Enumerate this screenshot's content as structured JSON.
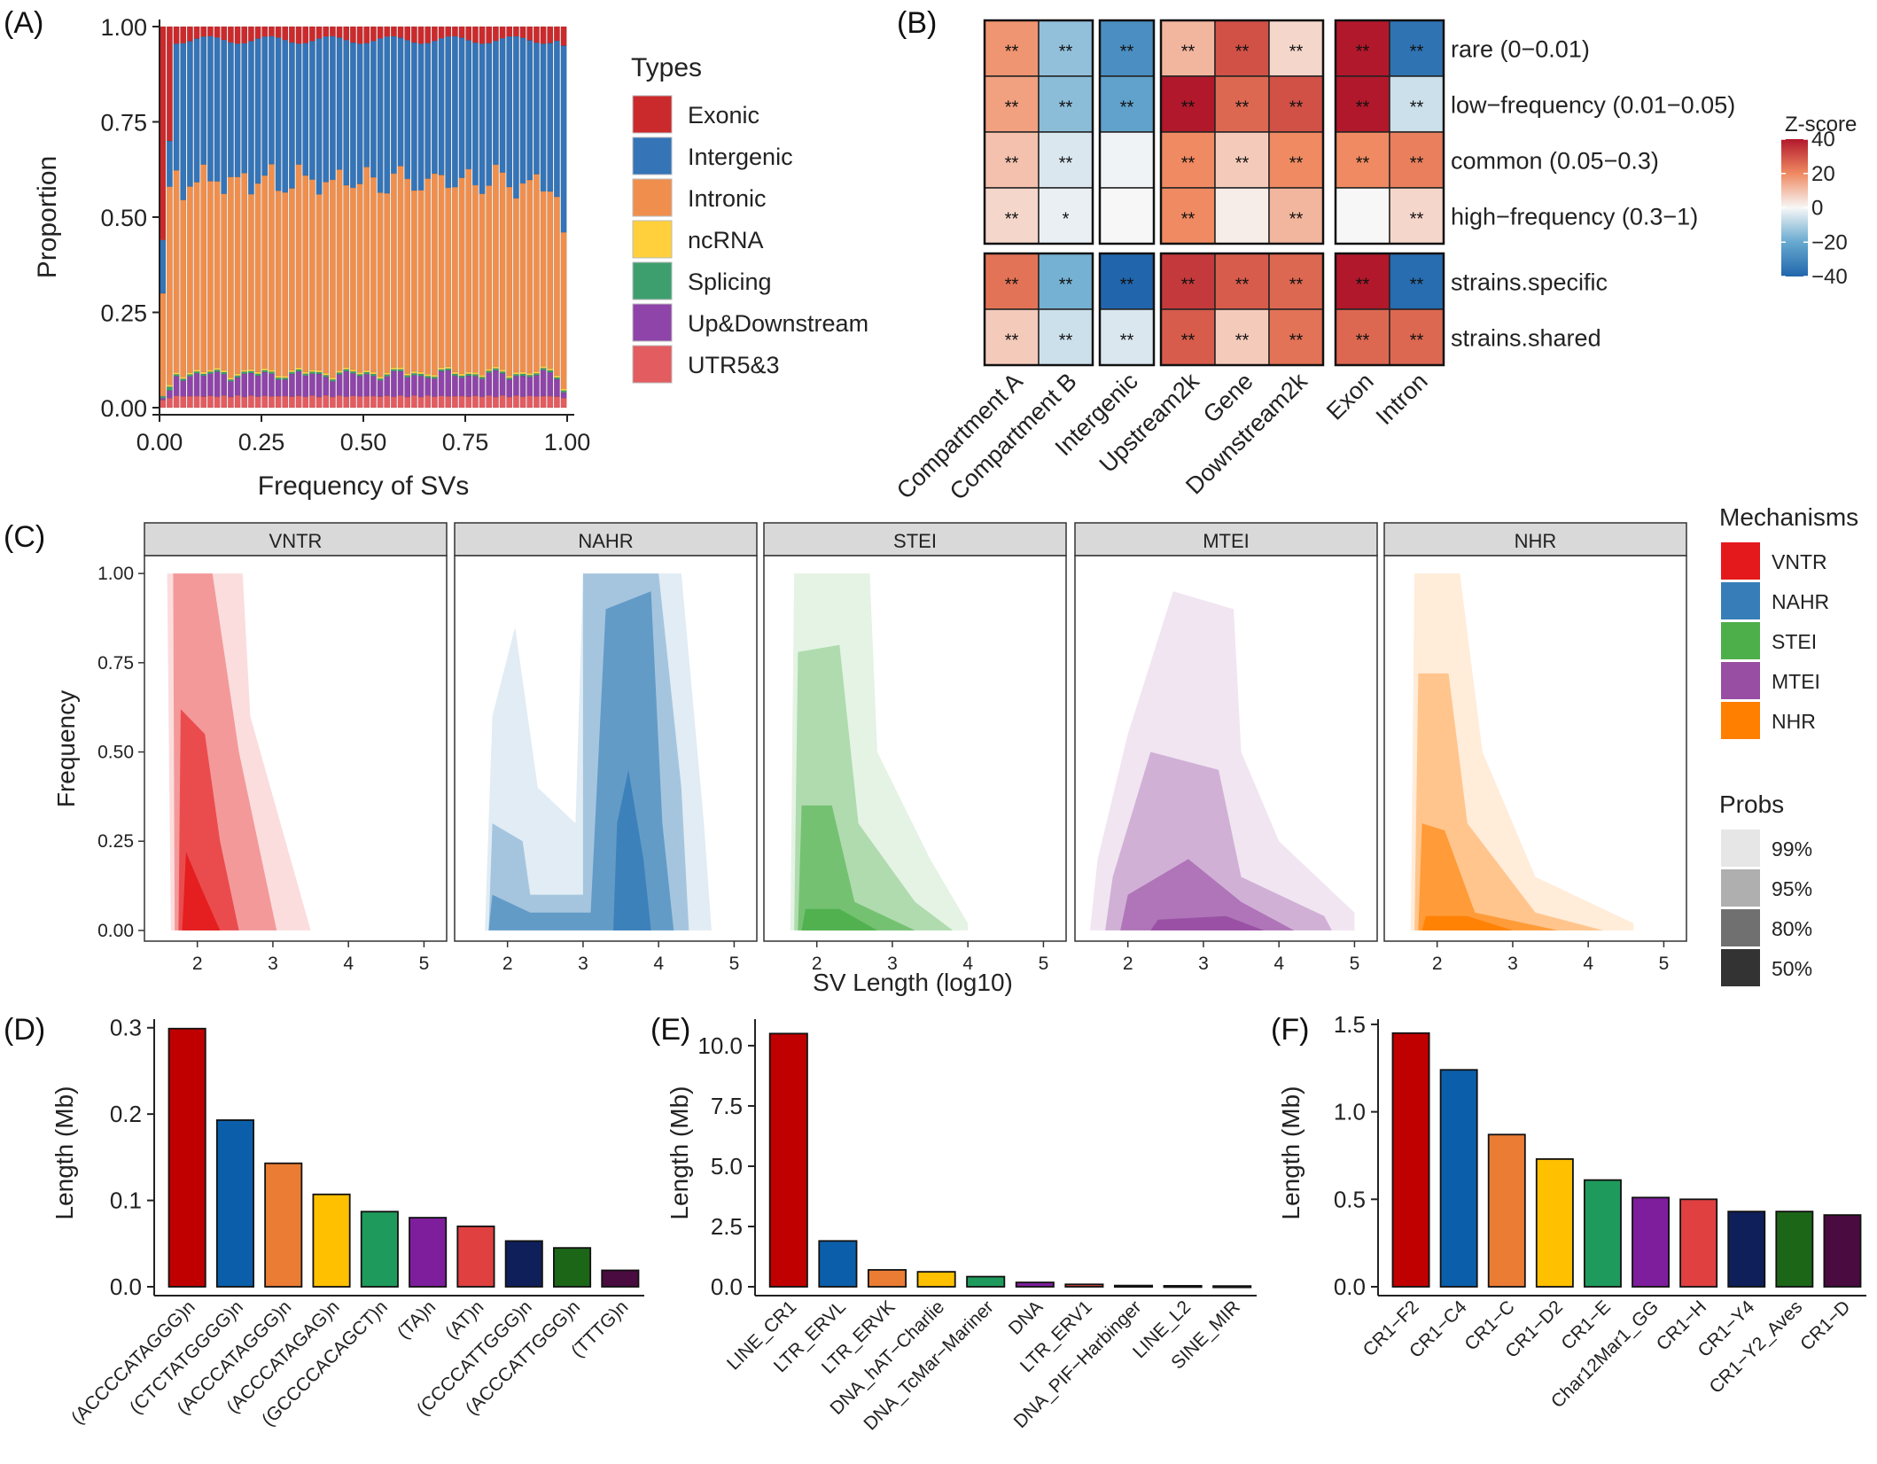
{
  "panels": {
    "A": "(A)",
    "B": "(B)",
    "C": "(C)",
    "D": "(D)",
    "E": "(E)",
    "F": "(F)"
  },
  "colors": {
    "Exonic": "#CB2A2C",
    "Intergenic": "#3474B7",
    "Intronic": "#F08F4D",
    "ncRNA": "#FFD03B",
    "Splicing": "#3E9F6E",
    "UpDown": "#8E44A8",
    "UTR": "#E35C60",
    "VNTR": "#E4191C",
    "NAHR": "#377EB8",
    "STEI": "#4DAF4A",
    "MTEI": "#984EA3",
    "NHR": "#FF7F00",
    "bars10": [
      "#C00000",
      "#0B5FAA",
      "#EB7C33",
      "#FFC000",
      "#1E9B5C",
      "#7E1E9C",
      "#E04040",
      "#0F1F5A",
      "#1C6618",
      "#4A0B40"
    ]
  },
  "chart_data": [
    {
      "id": "A",
      "type": "bar",
      "stacked": true,
      "xlabel": "Frequency of SVs",
      "ylabel": "Proportion",
      "xticks": [
        "0.00",
        "0.25",
        "0.50",
        "0.75",
        "1.00"
      ],
      "yticks": [
        "0.00",
        "0.25",
        "0.50",
        "0.75",
        "1.00"
      ],
      "xlim": [
        0,
        1
      ],
      "ylim": [
        0,
        1
      ],
      "legend_title": "Types",
      "legend": [
        "Exonic",
        "Intergenic",
        "Intronic",
        "ncRNA",
        "Splicing",
        "Up&Downstream",
        "UTR5&3"
      ],
      "n_bins": 60,
      "first_bin": {
        "UTR": 0.02,
        "UpDown": 0.005,
        "Splicing": 0.005,
        "ncRNA": 0.0,
        "Intronic": 0.27,
        "Intergenic": 0.14,
        "Exonic": 0.56
      },
      "second_bin": {
        "UTR": 0.025,
        "UpDown": 0.02,
        "Splicing": 0.01,
        "ncRNA": 0.005,
        "Intronic": 0.52,
        "Intergenic": 0.12,
        "Exonic": 0.3
      },
      "last_bin": {
        "UTR": 0.025,
        "UpDown": 0.015,
        "Splicing": 0.005,
        "ncRNA": 0.005,
        "Intronic": 0.41,
        "Intergenic": 0.49,
        "Exonic": 0.05
      },
      "typical": {
        "UTR": 0.03,
        "UpDown": 0.055,
        "Splicing": 0.005,
        "ncRNA": 0.005,
        "Intronic": 0.5,
        "Intergenic": 0.37,
        "Exonic": 0.035
      }
    },
    {
      "id": "B",
      "type": "heatmap",
      "columns": [
        "Compartment A",
        "Compartment B",
        "Intergenic",
        "Upstream2k",
        "Gene",
        "Downstream2k",
        "Exon",
        "Intron"
      ],
      "column_groups": [
        [
          0,
          1
        ],
        [
          2
        ],
        [
          3,
          4,
          5
        ],
        [
          6,
          7
        ]
      ],
      "rows": [
        "rare (0−0.01)",
        "low−frequency (0.01−0.05)",
        "common (0.05−0.3)",
        "high−frequency (0.3−1)",
        "strains.specific",
        "strains.shared"
      ],
      "row_groups": [
        [
          0,
          1,
          2,
          3
        ],
        [
          4,
          5
        ]
      ],
      "values": [
        [
          18,
          -14,
          -28,
          12,
          30,
          6,
          40,
          -36
        ],
        [
          16,
          -15,
          -22,
          40,
          26,
          30,
          40,
          -6
        ],
        [
          10,
          -4,
          -1,
          20,
          8,
          20,
          20,
          22
        ],
        [
          6,
          -2,
          0,
          20,
          2,
          12,
          0,
          6
        ],
        [
          24,
          -18,
          -40,
          34,
          28,
          26,
          40,
          -38
        ],
        [
          8,
          -6,
          -4,
          28,
          8,
          24,
          26,
          26
        ]
      ],
      "labels": [
        [
          "**",
          "**",
          "**",
          "**",
          "**",
          "**",
          "**",
          "**"
        ],
        [
          "**",
          "**",
          "**",
          "**",
          "**",
          "**",
          "**",
          "**"
        ],
        [
          "**",
          "**",
          "",
          "**",
          "**",
          "**",
          "**",
          "**"
        ],
        [
          "**",
          "*",
          "",
          "**",
          "",
          "**",
          "",
          "**"
        ],
        [
          "**",
          "**",
          "**",
          "**",
          "**",
          "**",
          "**",
          "**"
        ],
        [
          "**",
          "**",
          "**",
          "**",
          "**",
          "**",
          "**",
          "**"
        ]
      ],
      "legend_title": "Z-score",
      "legend_ticks": [
        40,
        20,
        0,
        -20,
        -40
      ],
      "legend_tick_labels": [
        "40",
        "20",
        "0",
        "−20",
        "−40"
      ],
      "range": [
        -40,
        40
      ]
    },
    {
      "id": "C",
      "type": "area",
      "note": "2D density contours of SV frequency vs SV length",
      "facets": [
        "VNTR",
        "NAHR",
        "STEI",
        "MTEI",
        "NHR"
      ],
      "xlabel": "SV Length (log10)",
      "ylabel": "Frequency",
      "xticks": [
        "2",
        "3",
        "4",
        "5"
      ],
      "yticks": [
        "0.00",
        "0.25",
        "0.50",
        "0.75",
        "1.00"
      ],
      "xlim": [
        1.3,
        5.3
      ],
      "ylim": [
        -0.03,
        1.05
      ],
      "legend_title": "Mechanisms",
      "legend": [
        "VNTR",
        "NAHR",
        "STEI",
        "MTEI",
        "NHR"
      ],
      "probs_title": "Probs",
      "probs": [
        "99%",
        "95%",
        "80%",
        "50%"
      ],
      "probs_alpha": [
        0.15,
        0.35,
        0.6,
        0.9
      ]
    },
    {
      "id": "D",
      "type": "bar",
      "ylabel": "Length (Mb)",
      "categories": [
        "(ACCCCATAGGG)n",
        "(CTCTATGGGG)n",
        "(ACCCATAGGG)n",
        "(ACCCATAGAG)n",
        "(GCCCCACAGCT)n",
        "(TA)n",
        "(AT)n",
        "(CCCCATTGGG)n",
        "(ACCCATTGGG)n",
        "(TTTG)n"
      ],
      "values": [
        0.299,
        0.193,
        0.143,
        0.107,
        0.087,
        0.08,
        0.07,
        0.053,
        0.045,
        0.019
      ],
      "ylim": [
        0,
        0.31
      ],
      "yticks": [
        0,
        0.1,
        0.2,
        0.3
      ],
      "ytick_labels": [
        "0.0",
        "0.1",
        "0.2",
        "0.3"
      ]
    },
    {
      "id": "E",
      "type": "bar",
      "ylabel": "Length (Mb)",
      "categories": [
        "LINE_CR1",
        "LTR_ERVL",
        "LTR_ERVK",
        "DNA_hAT−Charlie",
        "DNA_TcMar−Mariner",
        "DNA",
        "LTR_ERV1",
        "DNA_PIF−Harbinger",
        "LINE_L2",
        "SINE_MIR"
      ],
      "values": [
        10.5,
        1.9,
        0.7,
        0.62,
        0.42,
        0.18,
        0.1,
        0.05,
        0.04,
        0.03
      ],
      "ylim": [
        0,
        11.1
      ],
      "yticks": [
        0,
        2.5,
        5,
        7.5,
        10
      ],
      "ytick_labels": [
        "0.0",
        "2.5",
        "5.0",
        "7.5",
        "10.0"
      ]
    },
    {
      "id": "F",
      "type": "bar",
      "ylabel": "Length (Mb)",
      "categories": [
        "CR1−F2",
        "CR1−C4",
        "CR1−C",
        "CR1−D2",
        "CR1−E",
        "Char12Mar1_GG",
        "CR1−H",
        "CR1−Y4",
        "CR1−Y2_Aves",
        "CR1−D"
      ],
      "values": [
        1.45,
        1.24,
        0.87,
        0.73,
        0.61,
        0.51,
        0.5,
        0.43,
        0.43,
        0.41
      ],
      "ylim": [
        0,
        1.53
      ],
      "yticks": [
        0,
        0.5,
        1,
        1.5
      ],
      "ytick_labels": [
        "0.0",
        "0.5",
        "1.0",
        "1.5"
      ]
    }
  ]
}
